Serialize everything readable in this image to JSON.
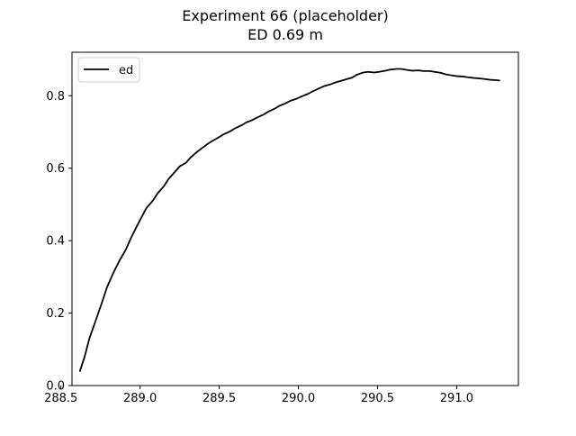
{
  "chart_data": {
    "type": "line",
    "title": "Experiment 66 (placeholder)",
    "subtitle": "ED 0.69 m",
    "xlabel": "",
    "ylabel": "",
    "xlim": [
      288.57,
      291.39
    ],
    "ylim": [
      0.0,
      0.92
    ],
    "x_ticks": [
      288.5,
      289.0,
      289.5,
      290.0,
      290.5,
      291.0
    ],
    "x_tick_labels": [
      "288.5",
      "289.0",
      "289.5",
      "290.0",
      "290.5",
      "291.0"
    ],
    "y_ticks": [
      0.0,
      0.2,
      0.4,
      0.6,
      0.8
    ],
    "y_tick_labels": [
      "0.0",
      "0.2",
      "0.4",
      "0.6",
      "0.8"
    ],
    "grid": false,
    "legend": {
      "placement": "top-left",
      "entries": [
        "ed"
      ]
    },
    "series": [
      {
        "name": "ed",
        "color": "#000000",
        "x": [
          288.62,
          288.65,
          288.68,
          288.72,
          288.76,
          288.79,
          288.83,
          288.87,
          288.91,
          288.94,
          288.98,
          289.01,
          289.04,
          289.08,
          289.11,
          289.15,
          289.18,
          289.22,
          289.25,
          289.29,
          289.32,
          289.36,
          289.39,
          289.43,
          289.46,
          289.5,
          289.53,
          289.57,
          289.6,
          289.64,
          289.67,
          289.71,
          289.74,
          289.78,
          289.81,
          289.85,
          289.88,
          289.92,
          289.95,
          289.99,
          290.02,
          290.06,
          290.09,
          290.13,
          290.16,
          290.2,
          290.23,
          290.27,
          290.3,
          290.34,
          290.37,
          290.41,
          290.44,
          290.48,
          290.51,
          290.55,
          290.58,
          290.62,
          290.65,
          290.69,
          290.72,
          290.76,
          290.79,
          290.83,
          290.86,
          290.9,
          290.93,
          290.97,
          291.0,
          291.04,
          291.07,
          291.11,
          291.14,
          291.18,
          291.21,
          291.25,
          291.27
        ],
        "y": [
          0.04,
          0.08,
          0.13,
          0.18,
          0.23,
          0.27,
          0.31,
          0.345,
          0.375,
          0.405,
          0.44,
          0.465,
          0.49,
          0.51,
          0.53,
          0.55,
          0.57,
          0.59,
          0.605,
          0.615,
          0.63,
          0.645,
          0.655,
          0.668,
          0.676,
          0.686,
          0.694,
          0.702,
          0.71,
          0.718,
          0.726,
          0.733,
          0.74,
          0.748,
          0.756,
          0.764,
          0.772,
          0.779,
          0.786,
          0.792,
          0.798,
          0.805,
          0.812,
          0.82,
          0.826,
          0.831,
          0.836,
          0.841,
          0.845,
          0.85,
          0.858,
          0.864,
          0.866,
          0.864,
          0.866,
          0.869,
          0.872,
          0.874,
          0.874,
          0.871,
          0.869,
          0.87,
          0.868,
          0.868,
          0.866,
          0.863,
          0.859,
          0.856,
          0.854,
          0.853,
          0.851,
          0.849,
          0.848,
          0.846,
          0.844,
          0.843,
          0.842
        ]
      }
    ]
  }
}
